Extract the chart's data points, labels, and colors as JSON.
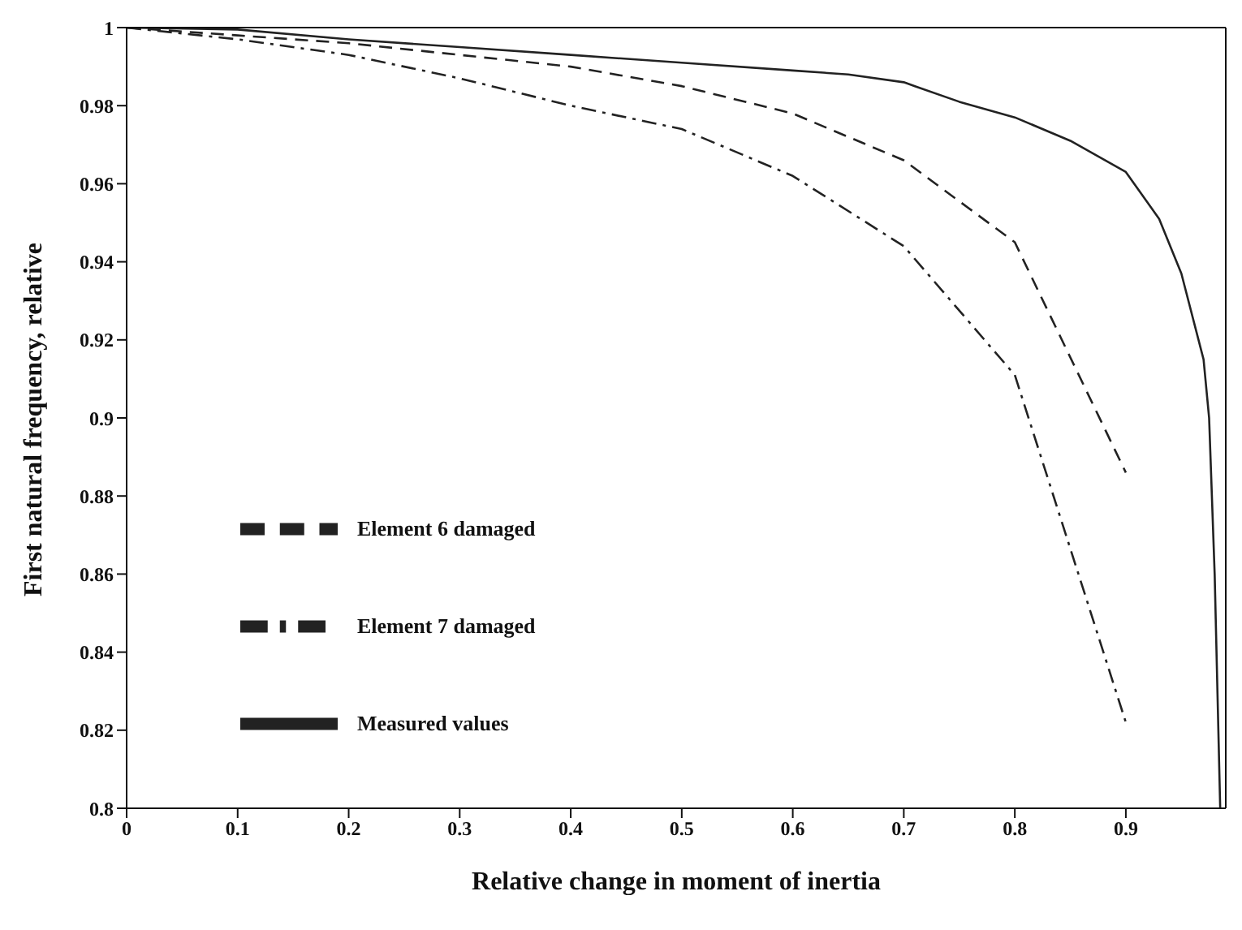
{
  "chart_data": {
    "type": "line",
    "xlabel": "Relative change in moment of inertia",
    "ylabel": "First natural frequency, relative",
    "xlim": [
      0,
      0.99
    ],
    "xticks": [
      0,
      0.1,
      0.2,
      0.3,
      0.4,
      0.5,
      0.6,
      0.7,
      0.8,
      0.9
    ],
    "ylim": [
      0.8,
      1
    ],
    "yticks": [
      0.8,
      0.82,
      0.84,
      0.86,
      0.88,
      0.9,
      0.92,
      0.94,
      0.96,
      0.98,
      1
    ],
    "grid": false,
    "legend": "left",
    "marker": "none",
    "series": [
      {
        "name": "Measured values",
        "color": "#222222",
        "line_style": "solid",
        "x": [
          0,
          0.1,
          0.2,
          0.3,
          0.4,
          0.5,
          0.6,
          0.65,
          0.7,
          0.71,
          0.75,
          0.8,
          0.85,
          0.9,
          0.93,
          0.95,
          0.97,
          0.975,
          0.98,
          0.985
        ],
        "values": [
          1,
          0.9995,
          0.997,
          0.995,
          0.993,
          0.991,
          0.989,
          0.988,
          0.986,
          0.985,
          0.981,
          0.977,
          0.971,
          0.963,
          0.951,
          0.937,
          0.915,
          0.9,
          0.86,
          0.8
        ]
      },
      {
        "name": "Element 6 damaged",
        "color": "#222222",
        "line_style": "dashed",
        "x": [
          0,
          0.1,
          0.2,
          0.3,
          0.4,
          0.5,
          0.6,
          0.7,
          0.8,
          0.9
        ],
        "values": [
          1,
          0.998,
          0.996,
          0.993,
          0.99,
          0.985,
          0.978,
          0.966,
          0.945,
          0.886
        ]
      },
      {
        "name": "Element 7 damaged",
        "color": "#222222",
        "line_style": "dashdot",
        "x": [
          0,
          0.1,
          0.2,
          0.3,
          0.4,
          0.5,
          0.6,
          0.7,
          0.8,
          0.9
        ],
        "values": [
          1,
          0.997,
          0.993,
          0.987,
          0.98,
          0.974,
          0.962,
          0.944,
          0.911,
          0.822
        ]
      }
    ]
  }
}
